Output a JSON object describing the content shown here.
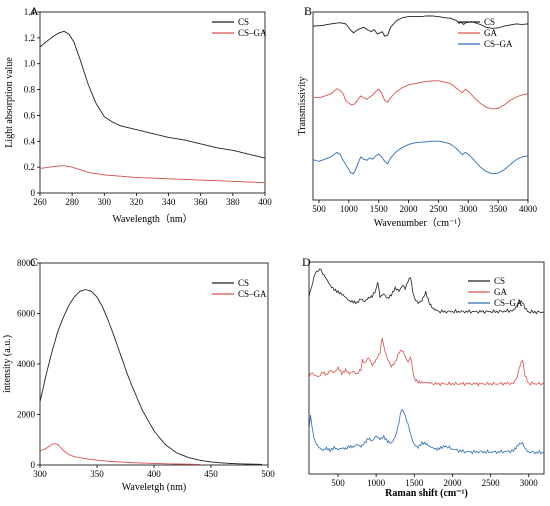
{
  "chart_data": [
    {
      "panel_label": "A",
      "type": "line",
      "xlabel": "Wavelength（nm）",
      "ylabel": "Light absorption value",
      "xlim": [
        260,
        400
      ],
      "ylim": [
        0,
        1.4
      ],
      "xticks": [
        "260",
        "280",
        "300",
        "320",
        "340",
        "360",
        "380",
        "400"
      ],
      "yticks": [
        "0",
        "0.2",
        "0.4",
        "0.6",
        "0.8",
        "1.0",
        "1.2",
        "1.4"
      ],
      "yticks_values": [
        0,
        0.2,
        0.4,
        0.6,
        0.8,
        1.0,
        1.2,
        1.4
      ],
      "xticks_values": [
        260,
        280,
        300,
        320,
        340,
        360,
        380,
        400
      ],
      "legend": "top-right",
      "grid": false,
      "series": [
        {
          "name": "CS",
          "color": "#222222",
          "x": [
            260,
            264,
            268,
            272,
            275,
            278,
            281,
            285,
            290,
            295,
            300,
            305,
            310,
            320,
            330,
            340,
            350,
            360,
            370,
            380,
            390,
            400
          ],
          "y": [
            1.13,
            1.17,
            1.21,
            1.24,
            1.25,
            1.23,
            1.17,
            1.03,
            0.84,
            0.69,
            0.59,
            0.55,
            0.52,
            0.49,
            0.46,
            0.43,
            0.41,
            0.38,
            0.35,
            0.33,
            0.3,
            0.27
          ]
        },
        {
          "name": "CS–GA",
          "color": "#d9534f",
          "x": [
            260,
            266,
            272,
            276,
            280,
            285,
            290,
            300,
            310,
            320,
            340,
            360,
            380,
            400
          ],
          "y": [
            0.19,
            0.2,
            0.21,
            0.21,
            0.2,
            0.18,
            0.16,
            0.14,
            0.13,
            0.12,
            0.11,
            0.1,
            0.09,
            0.08
          ]
        }
      ]
    },
    {
      "panel_label": "B",
      "type": "line",
      "xlabel": "Wavenumber（cm⁻¹）",
      "ylabel": "Transmissivity",
      "xlim": [
        400,
        4000
      ],
      "xticks": [
        "500",
        "1000",
        "1500",
        "2000",
        "2500",
        "3000",
        "3500",
        "4000"
      ],
      "xticks_values": [
        500,
        1000,
        1500,
        2000,
        2500,
        3000,
        3500,
        4000
      ],
      "yticks": [],
      "legend": "top-right",
      "grid": false,
      "series": [
        {
          "name": "CS",
          "color": "#222222",
          "x": [
            400,
            550,
            700,
            850,
            950,
            1030,
            1080,
            1150,
            1250,
            1320,
            1380,
            1420,
            1480,
            1560,
            1600,
            1650,
            1700,
            1800,
            1900,
            2000,
            2100,
            2200,
            2300,
            2400,
            2500,
            2600,
            2700,
            2800,
            2850,
            2880,
            2920,
            2960,
            3050,
            3200,
            3300,
            3400,
            3500,
            3600,
            3700,
            3800,
            3900,
            4000
          ],
          "y": [
            0.82,
            0.83,
            0.86,
            0.88,
            0.86,
            0.75,
            0.7,
            0.76,
            0.8,
            0.75,
            0.72,
            0.76,
            0.68,
            0.72,
            0.64,
            0.66,
            0.8,
            0.92,
            0.97,
            0.99,
            0.99,
            0.99,
            1.0,
            1.0,
            0.99,
            0.97,
            0.96,
            0.92,
            0.87,
            0.89,
            0.85,
            0.88,
            0.9,
            0.85,
            0.8,
            0.78,
            0.79,
            0.82,
            0.84,
            0.86,
            0.85,
            0.86
          ]
        },
        {
          "name": "GA",
          "color": "#d9534f",
          "x": [
            400,
            500,
            600,
            700,
            800,
            850,
            900,
            950,
            1000,
            1050,
            1100,
            1150,
            1200,
            1250,
            1300,
            1400,
            1450,
            1500,
            1550,
            1600,
            1650,
            1700,
            1800,
            1900,
            2000,
            2100,
            2200,
            2300,
            2400,
            2500,
            2600,
            2700,
            2800,
            2900,
            2950,
            3000,
            3100,
            3200,
            3300,
            3400,
            3500,
            3600,
            3700,
            3800,
            3900,
            4000
          ],
          "y": [
            0.56,
            0.55,
            0.58,
            0.62,
            0.71,
            0.68,
            0.63,
            0.5,
            0.45,
            0.42,
            0.44,
            0.52,
            0.58,
            0.55,
            0.52,
            0.6,
            0.66,
            0.7,
            0.63,
            0.5,
            0.47,
            0.55,
            0.66,
            0.73,
            0.78,
            0.8,
            0.82,
            0.84,
            0.85,
            0.85,
            0.83,
            0.8,
            0.72,
            0.64,
            0.7,
            0.66,
            0.55,
            0.45,
            0.38,
            0.35,
            0.36,
            0.42,
            0.5,
            0.56,
            0.6,
            0.62
          ]
        },
        {
          "name": "CS–GA",
          "color": "#2e6db4",
          "x": [
            400,
            500,
            600,
            700,
            800,
            850,
            900,
            950,
            1000,
            1030,
            1070,
            1100,
            1150,
            1200,
            1250,
            1300,
            1350,
            1400,
            1450,
            1500,
            1550,
            1600,
            1650,
            1700,
            1800,
            1900,
            2000,
            2100,
            2200,
            2300,
            2400,
            2500,
            2600,
            2700,
            2800,
            2900,
            2950,
            3000,
            3100,
            3200,
            3300,
            3400,
            3500,
            3600,
            3700,
            3800,
            3900,
            4000
          ],
          "y": [
            0.45,
            0.42,
            0.46,
            0.5,
            0.58,
            0.55,
            0.45,
            0.36,
            0.28,
            0.22,
            0.2,
            0.24,
            0.38,
            0.5,
            0.46,
            0.44,
            0.48,
            0.46,
            0.52,
            0.55,
            0.5,
            0.42,
            0.38,
            0.48,
            0.6,
            0.67,
            0.72,
            0.75,
            0.76,
            0.77,
            0.78,
            0.78,
            0.76,
            0.73,
            0.65,
            0.54,
            0.58,
            0.55,
            0.44,
            0.32,
            0.24,
            0.2,
            0.21,
            0.27,
            0.36,
            0.45,
            0.5,
            0.52
          ]
        }
      ]
    },
    {
      "panel_label": "C",
      "type": "line",
      "xlabel": "Waveletgh (nm)",
      "ylabel": "intensity (a.u.)",
      "xlim": [
        300,
        500
      ],
      "ylim": [
        0,
        8000
      ],
      "xticks": [
        "300",
        "350",
        "400",
        "450",
        "500"
      ],
      "xticks_values": [
        300,
        350,
        400,
        450,
        500
      ],
      "yticks": [
        "0",
        "2000",
        "4000",
        "6000",
        "8000"
      ],
      "yticks_values": [
        0,
        2000,
        4000,
        6000,
        8000
      ],
      "legend": "top-right",
      "grid": false,
      "series": [
        {
          "name": "CS",
          "color": "#222222",
          "x": [
            300,
            305,
            310,
            315,
            320,
            325,
            330,
            335,
            340,
            345,
            350,
            355,
            360,
            365,
            370,
            375,
            380,
            390,
            400,
            410,
            420,
            430,
            440,
            450,
            460,
            470,
            480,
            490,
            495
          ],
          "y": [
            2500,
            3500,
            4400,
            5200,
            5800,
            6300,
            6650,
            6880,
            6950,
            6880,
            6650,
            6250,
            5700,
            5100,
            4450,
            3800,
            3200,
            2150,
            1350,
            800,
            480,
            300,
            190,
            120,
            80,
            55,
            40,
            30,
            25
          ]
        },
        {
          "name": "CS–GA",
          "color": "#d9534f",
          "x": [
            300,
            305,
            310,
            313,
            316,
            320,
            325,
            330,
            340,
            350,
            360,
            370,
            380,
            400,
            420,
            440
          ],
          "y": [
            550,
            650,
            800,
            860,
            800,
            600,
            420,
            330,
            250,
            190,
            150,
            120,
            95,
            60,
            40,
            25
          ]
        }
      ]
    },
    {
      "panel_label": "D",
      "type": "line",
      "xlabel": "Raman shift (cm⁻¹)",
      "xlim": [
        120,
        3200
      ],
      "xticks": [
        "500",
        "1000",
        "1500",
        "2000",
        "2500",
        "3000"
      ],
      "xticks_values": [
        500,
        1000,
        1500,
        2000,
        2500,
        3000
      ],
      "yticks": [],
      "legend": "top-right",
      "grid": false,
      "series": [
        {
          "name": "CS",
          "color": "#222222",
          "x": [
            120,
            150,
            200,
            260,
            300,
            350,
            400,
            450,
            500,
            550,
            600,
            650,
            700,
            750,
            800,
            850,
            900,
            950,
            1000,
            1020,
            1050,
            1100,
            1150,
            1200,
            1250,
            1300,
            1350,
            1380,
            1420,
            1450,
            1480,
            1500,
            1550,
            1600,
            1650,
            1680,
            1700,
            1750,
            1800,
            1900,
            2000,
            2200,
            2400,
            2600,
            2800,
            2850,
            2880,
            2920,
            2950,
            3000,
            3100,
            3200
          ],
          "y": [
            0.4,
            0.55,
            0.85,
            0.95,
            0.85,
            0.75,
            0.62,
            0.55,
            0.5,
            0.45,
            0.38,
            0.3,
            0.28,
            0.26,
            0.35,
            0.3,
            0.38,
            0.42,
            0.55,
            0.7,
            0.4,
            0.45,
            0.35,
            0.42,
            0.55,
            0.5,
            0.62,
            0.55,
            0.72,
            0.8,
            0.5,
            0.38,
            0.28,
            0.32,
            0.48,
            0.35,
            0.25,
            0.14,
            0.11,
            0.1,
            0.1,
            0.1,
            0.1,
            0.1,
            0.12,
            0.2,
            0.28,
            0.3,
            0.18,
            0.1,
            0.09,
            0.09
          ]
        },
        {
          "name": "GA",
          "color": "#d9534f",
          "x": [
            120,
            150,
            200,
            250,
            300,
            350,
            400,
            450,
            500,
            550,
            600,
            650,
            700,
            750,
            800,
            820,
            850,
            900,
            950,
            1000,
            1050,
            1080,
            1100,
            1150,
            1200,
            1250,
            1300,
            1340,
            1380,
            1420,
            1450,
            1480,
            1500,
            1550,
            1600,
            1650,
            1700,
            1800,
            2000,
            2200,
            2400,
            2600,
            2800,
            2850,
            2880,
            2920,
            2950,
            3000,
            3100,
            3200
          ],
          "y": [
            0.18,
            0.28,
            0.22,
            0.2,
            0.3,
            0.25,
            0.35,
            0.3,
            0.4,
            0.28,
            0.34,
            0.26,
            0.3,
            0.25,
            0.35,
            0.55,
            0.48,
            0.6,
            0.45,
            0.55,
            0.7,
            1.0,
            0.8,
            0.55,
            0.4,
            0.48,
            0.68,
            0.75,
            0.6,
            0.5,
            0.62,
            0.35,
            0.18,
            0.12,
            0.1,
            0.09,
            0.08,
            0.07,
            0.07,
            0.07,
            0.07,
            0.07,
            0.08,
            0.2,
            0.4,
            0.55,
            0.25,
            0.08,
            0.07,
            0.07
          ]
        },
        {
          "name": "CS–GA",
          "color": "#2e6db4",
          "x": [
            120,
            140,
            170,
            200,
            250,
            300,
            350,
            400,
            450,
            500,
            550,
            600,
            650,
            700,
            750,
            800,
            850,
            900,
            950,
            1000,
            1050,
            1100,
            1150,
            1200,
            1250,
            1300,
            1330,
            1360,
            1400,
            1430,
            1460,
            1500,
            1550,
            1600,
            1650,
            1700,
            1750,
            1800,
            1850,
            1900,
            2000,
            2100,
            2200,
            2400,
            2600,
            2800,
            2850,
            2880,
            2920,
            2950,
            3000,
            3100,
            3200
          ],
          "y": [
            0.55,
            0.85,
            0.5,
            0.3,
            0.2,
            0.15,
            0.2,
            0.16,
            0.22,
            0.18,
            0.2,
            0.18,
            0.22,
            0.2,
            0.26,
            0.22,
            0.3,
            0.4,
            0.35,
            0.45,
            0.38,
            0.42,
            0.32,
            0.28,
            0.4,
            0.7,
            0.95,
            0.9,
            0.75,
            0.6,
            0.4,
            0.28,
            0.22,
            0.3,
            0.28,
            0.22,
            0.18,
            0.16,
            0.2,
            0.24,
            0.18,
            0.14,
            0.12,
            0.12,
            0.12,
            0.14,
            0.22,
            0.28,
            0.3,
            0.2,
            0.12,
            0.11,
            0.11
          ]
        }
      ]
    }
  ]
}
